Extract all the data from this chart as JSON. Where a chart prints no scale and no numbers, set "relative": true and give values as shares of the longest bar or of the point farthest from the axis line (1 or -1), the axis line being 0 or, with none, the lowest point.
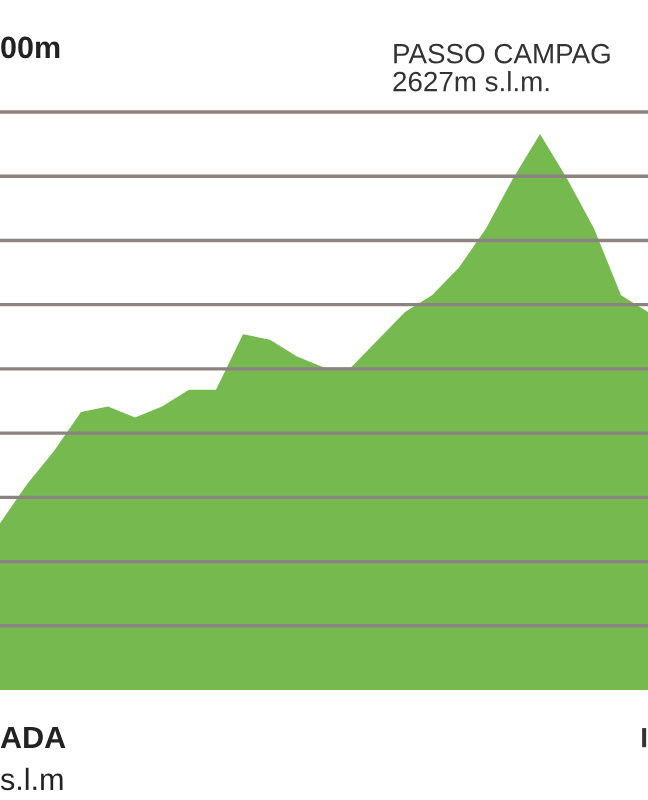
{
  "chart_data": {
    "type": "area",
    "relative": true,
    "title": "00m",
    "categories": [
      null,
      null,
      null,
      null,
      null,
      null,
      null,
      null,
      null,
      null,
      null,
      null,
      null,
      null,
      null,
      null,
      null,
      null,
      null,
      null,
      null,
      null,
      null,
      null,
      null
    ],
    "series": [
      {
        "color": "#76ba4f",
        "values": [
          0.3,
          0.37,
          0.43,
          0.5,
          0.51,
          0.49,
          0.51,
          0.54,
          0.54,
          0.64,
          0.63,
          0.6,
          0.58,
          0.58,
          0.63,
          0.68,
          0.71,
          0.76,
          0.83,
          0.92,
          1.0,
          0.92,
          0.83,
          0.71,
          0.68
        ]
      }
    ],
    "annotations": [
      "PASSO CAMPAG\n2627m s.l.m.",
      "ADA\ns.l.m",
      "I"
    ],
    "grid": "y",
    "legend": false
  }
}
